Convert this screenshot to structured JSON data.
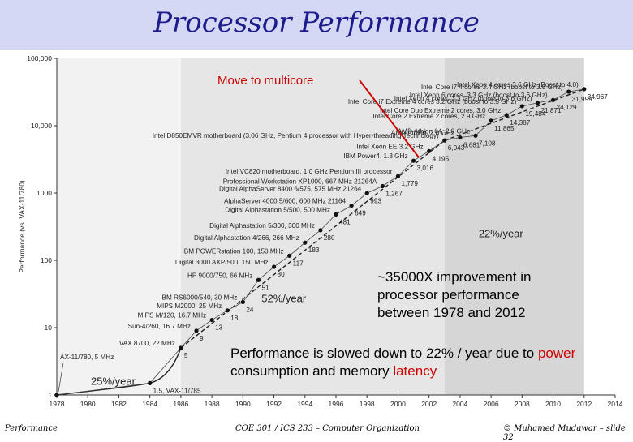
{
  "slide": {
    "title": "Processor Performance",
    "footer_left": "Performance",
    "footer_center": "COE 301 / ICS 233 – Computer Organization",
    "footer_right": "© Muhamed Mudawar – slide 32"
  },
  "callouts": {
    "multicore": "Move to multicore",
    "improvement": "~35000X improvement in processor performance between 1978 and 2012",
    "slowdown_pre": "Performance is slowed down to 22% / year due to ",
    "slowdown_power": "power",
    "slowdown_mid": " consumption and memory ",
    "slowdown_latency": "latency"
  },
  "colors": {
    "title_band": "#d4d8f5",
    "title_text": "#1c1c8c",
    "accent_red": "#cc0000",
    "callout_line": "#cc0000"
  },
  "chart_data": {
    "type": "scatter",
    "title": "",
    "xlabel": "",
    "ylabel": "Performance (vs. VAX-11/780)",
    "xlim": [
      1978,
      2014
    ],
    "ylim": [
      1,
      100000
    ],
    "log_y": true,
    "x_ticks": [
      "1978",
      "1980",
      "1982",
      "1984",
      "1986",
      "1988",
      "1990",
      "1992",
      "1994",
      "1996",
      "1998",
      "2000",
      "2002",
      "2004",
      "2006",
      "2008",
      "2010",
      "2012",
      "2014"
    ],
    "y_ticks": [
      "1",
      "10",
      "100",
      "1000",
      "10,000",
      "100,000"
    ],
    "y_tick_values": [
      1,
      10,
      100,
      1000,
      10000,
      100000
    ],
    "growth_regions": [
      {
        "label": "25%/year",
        "from": 1978,
        "to": 1986
      },
      {
        "label": "52%/year",
        "from": 1986,
        "to": 2003
      },
      {
        "label": "22%/year",
        "from": 2003,
        "to": 2012
      }
    ],
    "points": [
      {
        "x": 1978,
        "y": 1,
        "value": "",
        "label": ""
      },
      {
        "x": 1984,
        "y": 1.5,
        "value": "1.5, VAX-11/785",
        "label": ""
      },
      {
        "x": 1986,
        "y": 5,
        "value": "5",
        "label": "VAX 8700, 22 MHz"
      },
      {
        "x": 1987,
        "y": 9,
        "value": "9",
        "label": "Sun-4/260, 16.7 MHz"
      },
      {
        "x": 1988,
        "y": 13,
        "value": "13",
        "label": "MIPS M/120, 16.7 MHz"
      },
      {
        "x": 1989,
        "y": 18,
        "value": "18",
        "label": "MIPS M2000, 25 MHz"
      },
      {
        "x": 1990,
        "y": 24,
        "value": "24",
        "label": "IBM RS6000/540, 30 MHz"
      },
      {
        "x": 1991,
        "y": 51,
        "value": "51",
        "label": "HP 9000/750, 66 MHz"
      },
      {
        "x": 1992,
        "y": 80,
        "value": "80",
        "label": "Digital 3000 AXP/500, 150 MHz"
      },
      {
        "x": 1993,
        "y": 117,
        "value": "117",
        "label": "IBM POWERstation 100, 150 MHz"
      },
      {
        "x": 1994,
        "y": 183,
        "value": "183",
        "label": "Digital Alphastation 4/266, 266 MHz"
      },
      {
        "x": 1995,
        "y": 280,
        "value": "280",
        "label": "Digital Alphastation 5/300, 300 MHz"
      },
      {
        "x": 1996,
        "y": 481,
        "value": "481",
        "label": "Digital Alphastation 5/500, 500 MHz"
      },
      {
        "x": 1997,
        "y": 649,
        "value": "649",
        "label": "AlphaServer 4000 5/600, 600 MHz 21164"
      },
      {
        "x": 1998,
        "y": 993,
        "value": "993",
        "label": "Digital AlphaServer 8400 6/575, 575 MHz 21264"
      },
      {
        "x": 1999,
        "y": 1267,
        "value": "1,267",
        "label": "Professional Workstation XP1000, 667 MHz 21264A"
      },
      {
        "x": 2000,
        "y": 1779,
        "value": "1,779",
        "label": "Intel VC820 motherboard, 1.0 GHz Pentium III processor"
      },
      {
        "x": 2001,
        "y": 3016,
        "value": "3,016",
        "label": "IBM Power4, 1.3 GHz"
      },
      {
        "x": 2002,
        "y": 4195,
        "value": "4,195",
        "label": "Intel Xeon EE 3.2 GHz"
      },
      {
        "x": 2003,
        "y": 6043,
        "value": "6,043",
        "label": "Intel D850EMVR motherboard (3.06 GHz, Pentium 4 processor with Hyper-threading Technology)"
      },
      {
        "x": 2004,
        "y": 6681,
        "value": "6,681",
        "label": "AMD Athlon, 2.6 GHz"
      },
      {
        "x": 2005,
        "y": 7108,
        "value": "7,108",
        "label": "AMD Athlon 64, 2.8 GHz"
      },
      {
        "x": 2006,
        "y": 11865,
        "value": "11,865",
        "label": "Intel Core 2 Extreme 2 cores, 2.9 GHz"
      },
      {
        "x": 2007,
        "y": 14387,
        "value": "14,387",
        "label": "Intel Core Duo Extreme 2 cores, 3.0 GHz"
      },
      {
        "x": 2008,
        "y": 19484,
        "value": "19,484",
        "label": "Intel Core i7 Extreme 4 cores 3.2 GHz (boost to 3.5 GHz)"
      },
      {
        "x": 2009,
        "y": 21871,
        "value": "21,871",
        "label": "Intel Xeon 4 cores, 3.3 GHz (boost to 3.6 GHz)"
      },
      {
        "x": 2010,
        "y": 24129,
        "value": "24,129",
        "label": "Intel Xeon 6 cores, 3.3 GHz (boost to 3.6 GHz)"
      },
      {
        "x": 2011,
        "y": 31999,
        "value": "31,999",
        "label": "Intel Core i7 4 cores 3.4 GHz (boost to 3.8 GHz)"
      },
      {
        "x": 2012,
        "y": 34967,
        "value": "34,967",
        "label": "Intel Xeon 4 cores 3.6 GHz (Boost to 4.0)"
      }
    ],
    "early_labels": [
      "AX-11/780, 5 MHz"
    ]
  }
}
